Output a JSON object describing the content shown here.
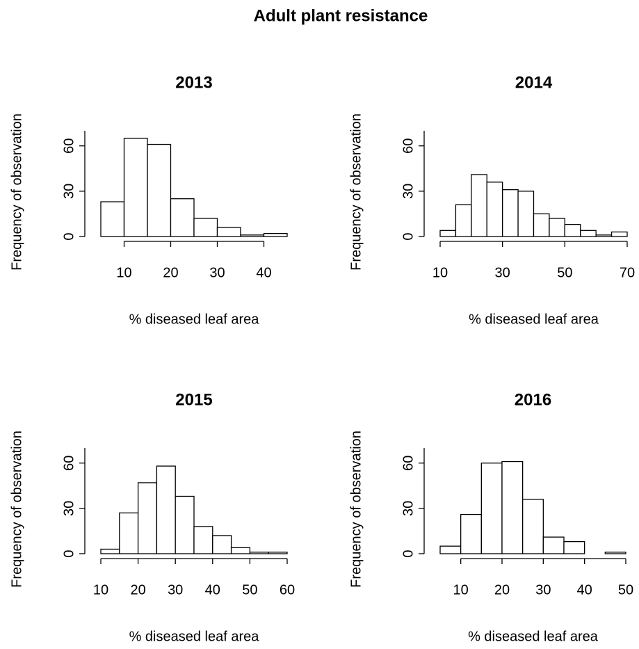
{
  "title": "Adult plant resistance",
  "chart_data": [
    {
      "type": "histogram",
      "title": "2013",
      "x_label": "% diseased leaf area",
      "y_label": "Frequency of observation",
      "bins": [
        5,
        10,
        15,
        20,
        25,
        30,
        35,
        40,
        45
      ],
      "values": [
        23,
        65,
        61,
        25,
        12,
        6,
        1,
        2
      ],
      "xlim": [
        5,
        45
      ],
      "xticks": [
        10,
        20,
        30,
        40
      ],
      "ylim": [
        0,
        70
      ],
      "yticks": [
        0,
        30,
        60
      ],
      "color": "#ffffff"
    },
    {
      "type": "histogram",
      "title": "2014",
      "x_label": "% diseased leaf area",
      "y_label": "Frequency of observation",
      "bins": [
        10,
        15,
        20,
        25,
        30,
        35,
        40,
        45,
        50,
        55,
        60,
        65,
        70
      ],
      "values": [
        4,
        21,
        41,
        36,
        31,
        30,
        15,
        12,
        8,
        4,
        1,
        3
      ],
      "xlim": [
        10,
        70
      ],
      "xticks": [
        10,
        30,
        50,
        70
      ],
      "ylim": [
        0,
        70
      ],
      "yticks": [
        0,
        30,
        60
      ],
      "color": "#ffffff"
    },
    {
      "type": "histogram",
      "title": "2015",
      "x_label": "% diseased leaf area",
      "y_label": "Frequency of observation",
      "bins": [
        10,
        15,
        20,
        25,
        30,
        35,
        40,
        45,
        50,
        55,
        60
      ],
      "values": [
        3,
        27,
        47,
        58,
        38,
        18,
        12,
        4,
        1,
        1
      ],
      "xlim": [
        10,
        60
      ],
      "xticks": [
        10,
        20,
        30,
        40,
        50,
        60
      ],
      "ylim": [
        0,
        70
      ],
      "yticks": [
        0,
        30,
        60
      ],
      "color": "#ffffff"
    },
    {
      "type": "histogram",
      "title": "2016",
      "x_label": "% diseased leaf area",
      "y_label": "Frequency of observation",
      "bins": [
        5,
        10,
        15,
        20,
        25,
        30,
        35,
        40,
        45,
        50
      ],
      "values": [
        5,
        26,
        60,
        61,
        36,
        11,
        8,
        0,
        1
      ],
      "xlim": [
        5,
        50
      ],
      "xticks": [
        10,
        20,
        30,
        40,
        50
      ],
      "ylim": [
        0,
        70
      ],
      "yticks": [
        0,
        30,
        60
      ],
      "color": "#ffffff"
    }
  ]
}
